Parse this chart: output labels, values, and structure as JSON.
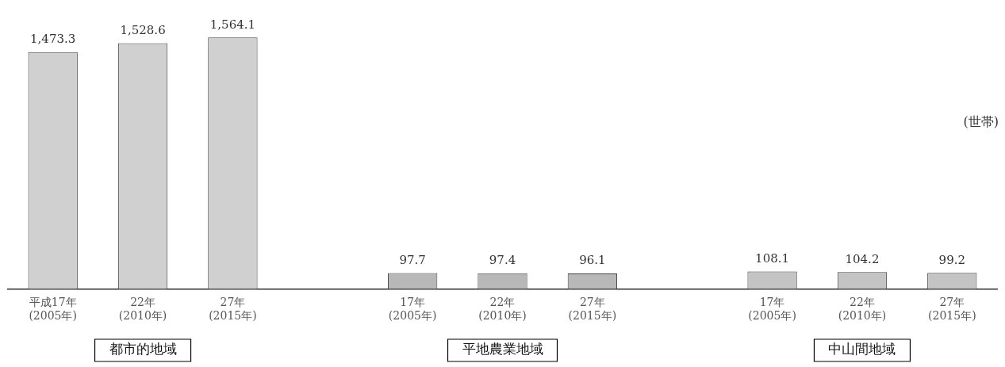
{
  "chart_data": {
    "type": "bar",
    "categories": [
      "平成17年\n(2005年)",
      "22年\n(2010年)",
      "27年\n(2015年)",
      null,
      "17年\n(2005年)",
      "22年\n(2010年)",
      "27年\n(2015年)",
      null,
      "17年\n(2005年)",
      "22年\n(2010年)",
      "27年\n(2015年)"
    ],
    "values": [
      1473.3,
      1528.6,
      1564.1,
      null,
      97.7,
      97.4,
      96.1,
      null,
      108.1,
      104.2,
      99.2
    ],
    "value_labels": [
      "1,473.3",
      "1,528.6",
      "1,564.1",
      null,
      "97.7",
      "97.4",
      "96.1",
      null,
      "108.1",
      "104.2",
      "99.2"
    ],
    "colors": [
      "#d0d0d0",
      "#d0d0d0",
      "#d0d0d0",
      null,
      "#b8b8b8",
      "#b8b8b8",
      "#b8b8b8",
      null,
      "#c4c4c4",
      "#c4c4c4",
      "#c4c4c4"
    ],
    "annotations": [
      "(世帯)",
      "都市的地域",
      "平地農業地域",
      "中山間地域"
    ],
    "legend": false,
    "grid": false
  }
}
